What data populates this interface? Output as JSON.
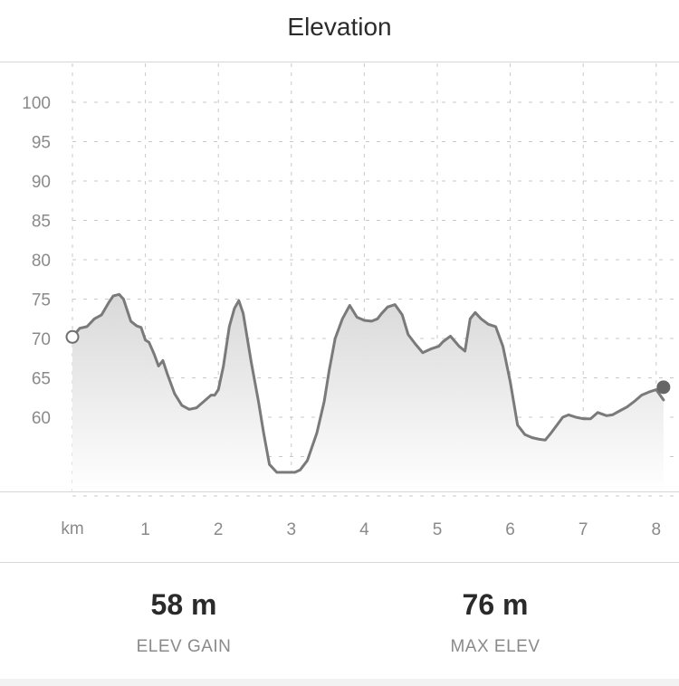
{
  "header": {
    "title": "Elevation"
  },
  "chart_data": {
    "type": "area",
    "title": "Elevation",
    "xlabel": "km",
    "ylabel": "",
    "xlim": [
      0,
      8.2
    ],
    "ylim": [
      50,
      105
    ],
    "grid": true,
    "x_ticks": [
      "1",
      "2",
      "3",
      "4",
      "5",
      "6",
      "7",
      "8"
    ],
    "y_ticks": [
      "100",
      "95",
      "90",
      "85",
      "80",
      "75",
      "70",
      "65",
      "60"
    ],
    "line_color": "#7a7a7a",
    "fill_color": "#dcdcdc",
    "series": [
      {
        "x": [
          0,
          0.1,
          0.2,
          0.3,
          0.4,
          0.5,
          0.56,
          0.64,
          0.7,
          0.8,
          0.88,
          0.94,
          1.0,
          1.05,
          1.12,
          1.18,
          1.24,
          1.3,
          1.4,
          1.5,
          1.6,
          1.7,
          1.8,
          1.9,
          1.95,
          2.0,
          2.07,
          2.15,
          2.22,
          2.28,
          2.34,
          2.45,
          2.55,
          2.62,
          2.7,
          2.8,
          2.9,
          3.0,
          3.05,
          3.12,
          3.22,
          3.35,
          3.45,
          3.52,
          3.6,
          3.7,
          3.8,
          3.9,
          4.0,
          4.1,
          4.18,
          4.24,
          4.32,
          4.42,
          4.52,
          4.6,
          4.7,
          4.8,
          4.92,
          5.02,
          5.08,
          5.18,
          5.3,
          5.38,
          5.45,
          5.52,
          5.6,
          5.7,
          5.8,
          5.9,
          6.0,
          6.1,
          6.2,
          6.3,
          6.4,
          6.48,
          6.56,
          6.64,
          6.72,
          6.8,
          6.9,
          7.0,
          7.1,
          7.2,
          7.32,
          7.4,
          7.5,
          7.6,
          7.7,
          7.8,
          7.9,
          8.0,
          8.1
        ],
        "y": [
          70.2,
          71.3,
          71.5,
          72.5,
          73.0,
          74.6,
          75.4,
          75.6,
          75.0,
          72.2,
          71.6,
          71.4,
          69.8,
          69.5,
          68.0,
          66.5,
          67.2,
          65.5,
          63.0,
          61.5,
          61.0,
          61.2,
          62.0,
          62.8,
          62.8,
          63.5,
          66.5,
          71.5,
          73.8,
          74.8,
          73.2,
          67.0,
          62.0,
          58.0,
          54.0,
          53.0,
          53.0,
          53.0,
          53.0,
          53.3,
          54.5,
          58.0,
          62.0,
          66.0,
          70.0,
          72.5,
          74.2,
          72.7,
          72.3,
          72.2,
          72.5,
          73.2,
          74.0,
          74.3,
          73.0,
          70.5,
          69.3,
          68.2,
          68.7,
          69.0,
          69.6,
          70.3,
          69.0,
          68.4,
          72.5,
          73.3,
          72.5,
          71.8,
          71.5,
          69.0,
          64.5,
          59.0,
          57.8,
          57.4,
          57.2,
          57.1,
          58.0,
          59.0,
          60.0,
          60.3,
          60.0,
          59.8,
          59.8,
          60.6,
          60.2,
          60.3,
          60.8,
          61.3,
          62.0,
          62.8,
          63.2,
          63.5,
          62.2
        ]
      }
    ],
    "x_resample_note": ""
  },
  "stats": [
    {
      "value": "58 m",
      "label": "ELEV GAIN"
    },
    {
      "value": "76 m",
      "label": "MAX ELEV"
    }
  ]
}
